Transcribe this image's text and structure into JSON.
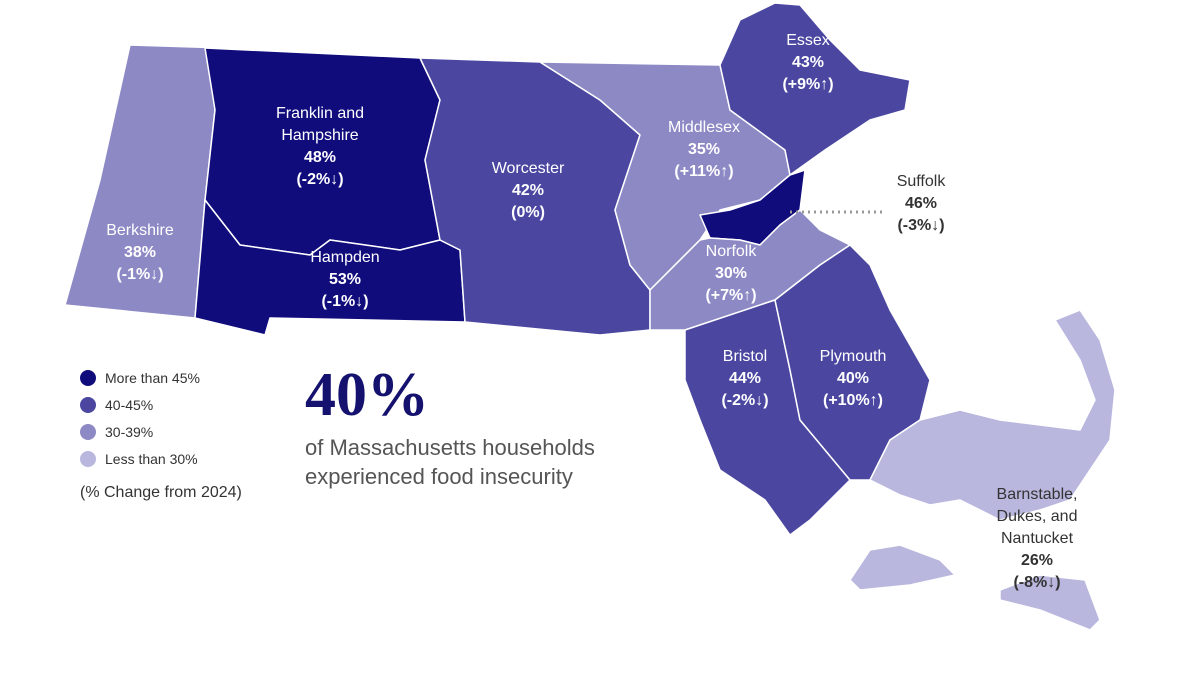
{
  "legend": {
    "items": [
      {
        "label": "More than 45%",
        "color": "#100c7c"
      },
      {
        "label": "40-45%",
        "color": "#4b47a1"
      },
      {
        "label": "30-39%",
        "color": "#8c89c5"
      },
      {
        "label": "Less than 30%",
        "color": "#b9b7de"
      }
    ],
    "note": "(% Change from 2024)"
  },
  "headline": {
    "value": "40%",
    "text_lines": [
      "of Massachusetts households",
      "experienced food insecurity"
    ]
  },
  "regions": [
    {
      "name_lines": [
        "Berkshire"
      ],
      "value": "38%",
      "change": "(-1%↓)",
      "color": "#8c89c5"
    },
    {
      "name_lines": [
        "Franklin and",
        "Hampshire"
      ],
      "value": "48%",
      "change": "(-2%↓)",
      "color": "#100c7c"
    },
    {
      "name_lines": [
        "Hampden"
      ],
      "value": "53%",
      "change": "(-1%↓)",
      "color": "#100c7c"
    },
    {
      "name_lines": [
        "Worcester"
      ],
      "value": "42%",
      "change": "(0%)",
      "color": "#4b47a1"
    },
    {
      "name_lines": [
        "Middlesex"
      ],
      "value": "35%",
      "change": "(+11%↑)",
      "color": "#8c89c5"
    },
    {
      "name_lines": [
        "Essex"
      ],
      "value": "43%",
      "change": "(+9%↑)",
      "color": "#4b47a1"
    },
    {
      "name_lines": [
        "Suffolk"
      ],
      "value": "46%",
      "change": "(-3%↓)",
      "color": "#100c7c"
    },
    {
      "name_lines": [
        "Norfolk"
      ],
      "value": "30%",
      "change": "(+7%↑)",
      "color": "#8c89c5"
    },
    {
      "name_lines": [
        "Bristol"
      ],
      "value": "44%",
      "change": "(-2%↓)",
      "color": "#4b47a1"
    },
    {
      "name_lines": [
        "Plymouth"
      ],
      "value": "40%",
      "change": "(+10%↑)",
      "color": "#4b47a1"
    },
    {
      "name_lines": [
        "Barnstable,",
        "Dukes, and",
        "Nantucket"
      ],
      "value": "26%",
      "change": "(-8%↓)",
      "color": "#b9b7de"
    }
  ]
}
